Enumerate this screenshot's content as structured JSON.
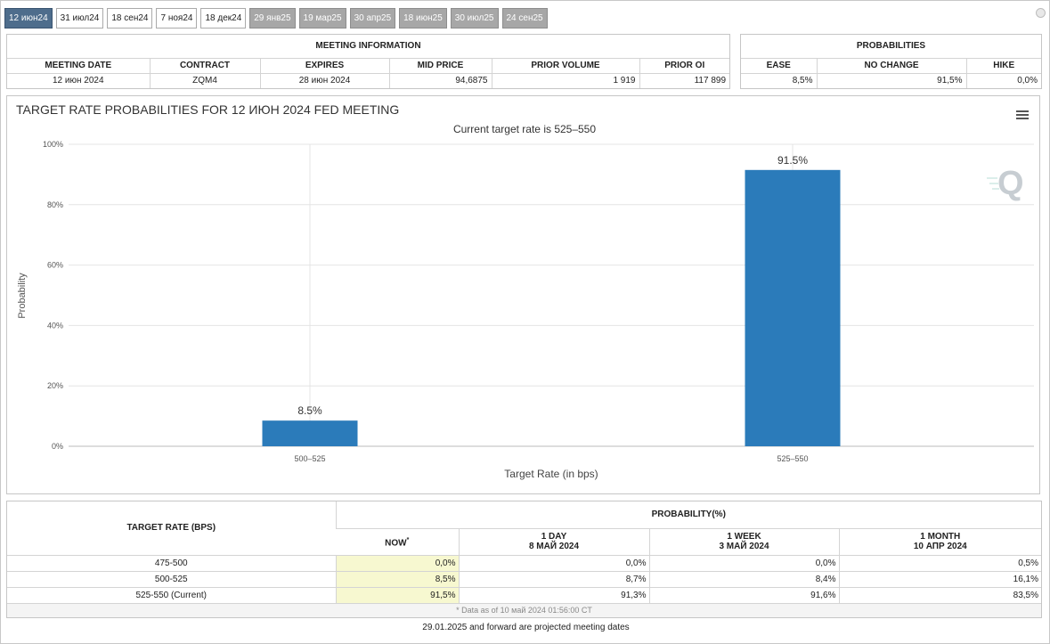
{
  "tabs": [
    {
      "label": "12 июн24",
      "state": "active"
    },
    {
      "label": "31 июл24",
      "state": "normal"
    },
    {
      "label": "18 сен24",
      "state": "normal"
    },
    {
      "label": "7 ноя24",
      "state": "normal"
    },
    {
      "label": "18 дек24",
      "state": "normal"
    },
    {
      "label": "29 янв25",
      "state": "future"
    },
    {
      "label": "19 мар25",
      "state": "future"
    },
    {
      "label": "30 апр25",
      "state": "future"
    },
    {
      "label": "18 июн25",
      "state": "future"
    },
    {
      "label": "30 июл25",
      "state": "future"
    },
    {
      "label": "24 сен25",
      "state": "future"
    }
  ],
  "meeting_info": {
    "title": "MEETING INFORMATION",
    "headers": [
      "MEETING DATE",
      "CONTRACT",
      "EXPIRES",
      "MID PRICE",
      "PRIOR VOLUME",
      "PRIOR OI"
    ],
    "row": [
      "12 июн 2024",
      "ZQM4",
      "28 июн 2024",
      "94,6875",
      "1 919",
      "117 899"
    ]
  },
  "probabilities": {
    "title": "PROBABILITIES",
    "headers": [
      "EASE",
      "NO CHANGE",
      "HIKE"
    ],
    "row": [
      "8,5%",
      "91,5%",
      "0,0%"
    ]
  },
  "chart": {
    "title": "TARGET RATE PROBABILITIES FOR 12 ИЮН 2024 FED MEETING",
    "subtitle": "Current target rate is 525–550",
    "colors": {
      "bar": "#2b7bba",
      "grid": "#e4e4e4"
    }
  },
  "chart_data": {
    "type": "bar",
    "title": "TARGET RATE PROBABILITIES FOR 12 ИЮН 2024 FED MEETING",
    "subtitle": "Current target rate is 525–550",
    "categories": [
      "500–525",
      "525–550"
    ],
    "values": [
      8.5,
      91.5
    ],
    "data_labels": [
      "8.5%",
      "91.5%"
    ],
    "xlabel": "Target Rate (in bps)",
    "ylabel": "Probability",
    "ylim": [
      0,
      100
    ],
    "yticks": [
      "0%",
      "20%",
      "40%",
      "60%",
      "80%",
      "100%"
    ],
    "grid": true,
    "legend": "none"
  },
  "bottom_table": {
    "col_target": "TARGET RATE (BPS)",
    "col_prob": "PROBABILITY(%)",
    "subheaders": [
      {
        "line1": "NOW",
        "line2": ""
      },
      {
        "line1": "1 DAY",
        "line2": "8 МАЙ 2024"
      },
      {
        "line1": "1 WEEK",
        "line2": "3 МАЙ 2024"
      },
      {
        "line1": "1 MONTH",
        "line2": "10 АПР 2024"
      }
    ],
    "rows": [
      {
        "rate": "475-500",
        "now": "0,0%",
        "day": "0,0%",
        "week": "0,0%",
        "month": "0,5%"
      },
      {
        "rate": "500-525",
        "now": "8,5%",
        "day": "8,7%",
        "week": "8,4%",
        "month": "16,1%"
      },
      {
        "rate": "525-550 (Current)",
        "now": "91,5%",
        "day": "91,3%",
        "week": "91,6%",
        "month": "83,5%"
      }
    ],
    "note": "* Data as of 10 май 2024 01:56:00 CT"
  },
  "footer": "29.01.2025 and forward are projected meeting dates"
}
